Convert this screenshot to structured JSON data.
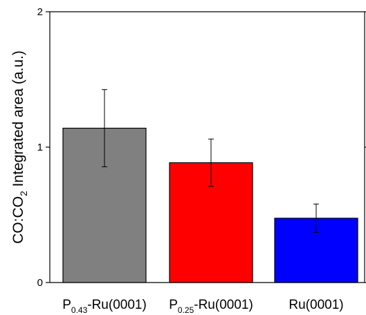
{
  "chart_data": {
    "type": "bar",
    "ylabel": {
      "parts": [
        {
          "text": "CO:CO",
          "sub": false
        },
        {
          "text": "2",
          "sub": true
        },
        {
          "text": " Integrated area (a.u.)",
          "sub": false
        }
      ]
    },
    "ylim": [
      0,
      2
    ],
    "yticks": [
      {
        "value": 0,
        "label": "0"
      },
      {
        "value": 1,
        "label": "1"
      },
      {
        "value": 2,
        "label": "2"
      }
    ],
    "categories": [
      {
        "parts": [
          {
            "text": "P",
            "sub": false
          },
          {
            "text": "0.43",
            "sub": true
          },
          {
            "text": "-Ru(0001)",
            "sub": false
          }
        ]
      },
      {
        "parts": [
          {
            "text": "P",
            "sub": false
          },
          {
            "text": "0.25",
            "sub": true
          },
          {
            "text": "-Ru(0001)",
            "sub": false
          }
        ]
      },
      {
        "parts": [
          {
            "text": "Ru(0001)",
            "sub": false
          }
        ]
      }
    ],
    "values": [
      1.14,
      0.885,
      0.475
    ],
    "errors": [
      0.285,
      0.175,
      0.105
    ],
    "colors": [
      "#808080",
      "#ff0000",
      "#0000ff"
    ]
  }
}
